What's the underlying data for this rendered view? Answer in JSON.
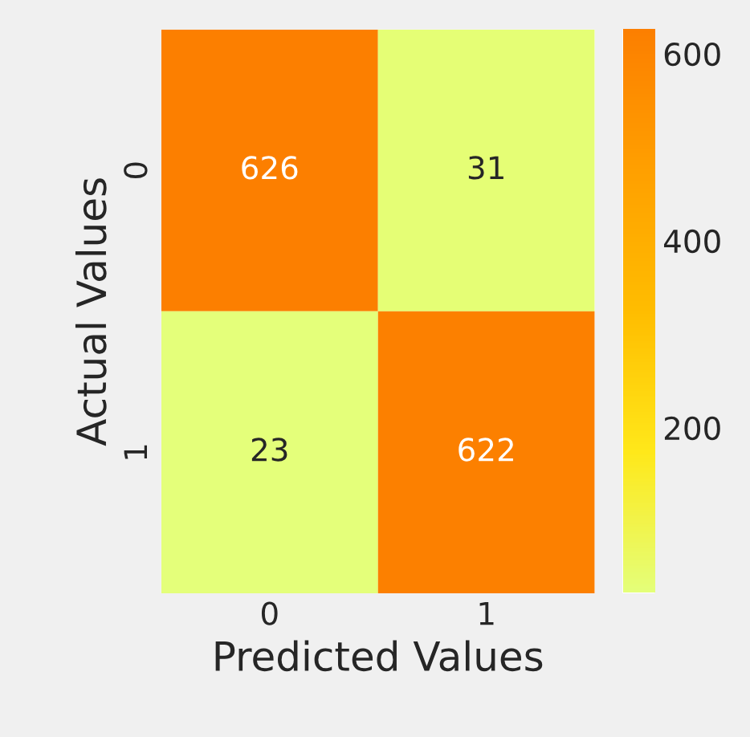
{
  "chart_data": {
    "type": "heatmap",
    "xlabel": "Predicted Values",
    "ylabel": "Actual Values",
    "categories": [
      "0",
      "1"
    ],
    "y_categories": [
      "0",
      "1"
    ],
    "cells": [
      [
        626,
        31
      ],
      [
        23,
        622
      ]
    ],
    "data_labels": true,
    "clim": [
      23,
      626
    ],
    "cticks": [
      200,
      400,
      600
    ]
  }
}
